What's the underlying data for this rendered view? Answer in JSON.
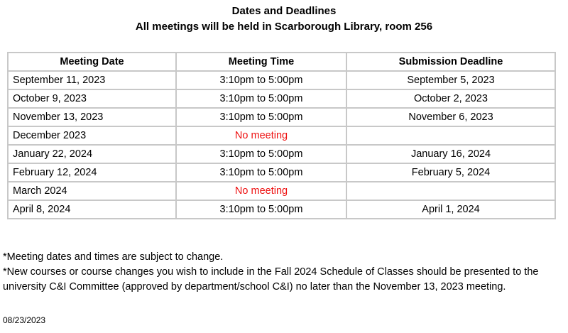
{
  "header": {
    "title": "Dates and Deadlines",
    "subtitle": "All meetings will be held in Scarborough Library, room 256"
  },
  "table": {
    "columns": [
      "Meeting Date",
      "Meeting Time",
      "Submission Deadline"
    ],
    "rows": [
      {
        "date": "September 11, 2023",
        "time": "3:10pm to 5:00pm",
        "deadline": "September 5, 2023"
      },
      {
        "date": "October 9, 2023",
        "time": "3:10pm to 5:00pm",
        "deadline": "October 2, 2023"
      },
      {
        "date": "November 13, 2023",
        "time": "3:10pm to 5:00pm",
        "deadline": "November 6, 2023"
      },
      {
        "date": "December 2023",
        "time": "No meeting",
        "deadline": ""
      },
      {
        "date": "January 22, 2024",
        "time": "3:10pm to 5:00pm",
        "deadline": "January 16, 2024"
      },
      {
        "date": "February 12, 2024",
        "time": "3:10pm to 5:00pm",
        "deadline": "February 5, 2024"
      },
      {
        "date": "March 2024",
        "time": "No meeting",
        "deadline": ""
      },
      {
        "date": "April 8, 2024",
        "time": "3:10pm to 5:00pm",
        "deadline": "April 1, 2024"
      }
    ]
  },
  "notes": [
    "*Meeting dates and times are subject to change.",
    "*New courses or course changes you wish to include in the Fall 2024 Schedule of Classes should be presented to the university C&I Committee (approved by department/school C&I) no later than the November 13, 2023 meeting."
  ],
  "revision_date": "08/23/2023",
  "colors": {
    "no_meeting": "#ee1111",
    "table_border": "#c8c8c8"
  }
}
